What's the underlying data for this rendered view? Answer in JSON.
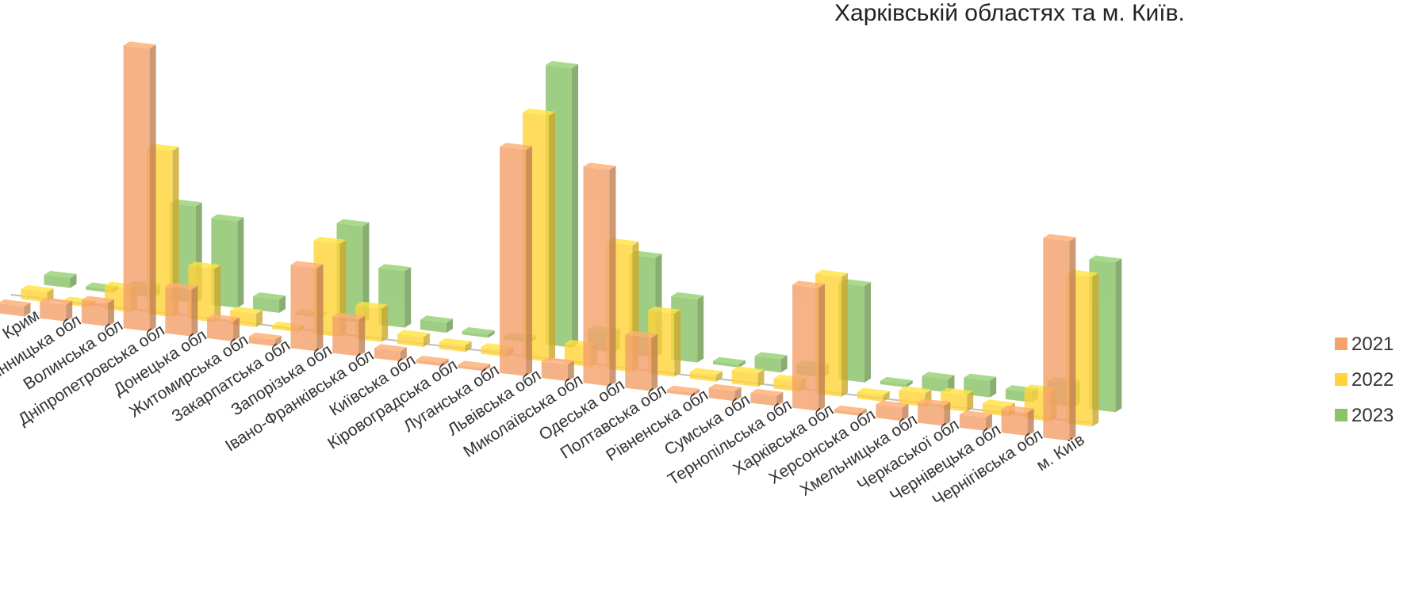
{
  "chart_data": {
    "type": "bar",
    "title": "Харківській областях та м. Київ.",
    "categories": [
      "АР Крим",
      "Вінницька обл",
      "Волинська обл",
      "Дніпропетровська обл",
      "Донецька обл",
      "Житомирська обл",
      "Закарпатська обл",
      "Запорізька обл",
      "Івано-Франківська обл",
      "Київська обл",
      "Кіровоградська обл",
      "Луганська обл",
      "Львівська обл",
      "Миколаївська обл",
      "Одеська обл",
      "Полтавська обл",
      "Рівненська обл",
      "Сумська обл",
      "Тернопільська обл",
      "Харківська обл",
      "Херсонська обл",
      "Хмельницька обл",
      "Черкаської обл",
      "Чернівецька обл",
      "Чернігівська обл",
      "м. Київ"
    ],
    "series": [
      {
        "name": "2021",
        "color": "#F4A26C",
        "values": [
          3,
          5,
          7,
          85,
          14,
          6,
          2,
          25,
          11,
          3,
          1,
          1,
          68,
          5,
          65,
          16,
          1,
          3,
          3,
          37,
          1,
          4,
          6,
          4,
          7,
          60
        ]
      },
      {
        "name": "2022",
        "color": "#FFD43B",
        "values": [
          3,
          1,
          7,
          50,
          16,
          4,
          1,
          28,
          10,
          3,
          2,
          2,
          74,
          6,
          38,
          19,
          2,
          4,
          3,
          36,
          2,
          4,
          5,
          3,
          9,
          45
        ]
      },
      {
        "name": "2023",
        "color": "#8CC36A",
        "values": [
          3,
          1,
          3,
          29,
          26,
          4,
          0,
          29,
          17,
          3,
          1,
          1,
          84,
          6,
          30,
          19,
          1,
          4,
          3,
          29,
          1,
          4,
          5,
          3,
          7,
          45
        ]
      }
    ],
    "grid": false,
    "legend_position": "right"
  }
}
